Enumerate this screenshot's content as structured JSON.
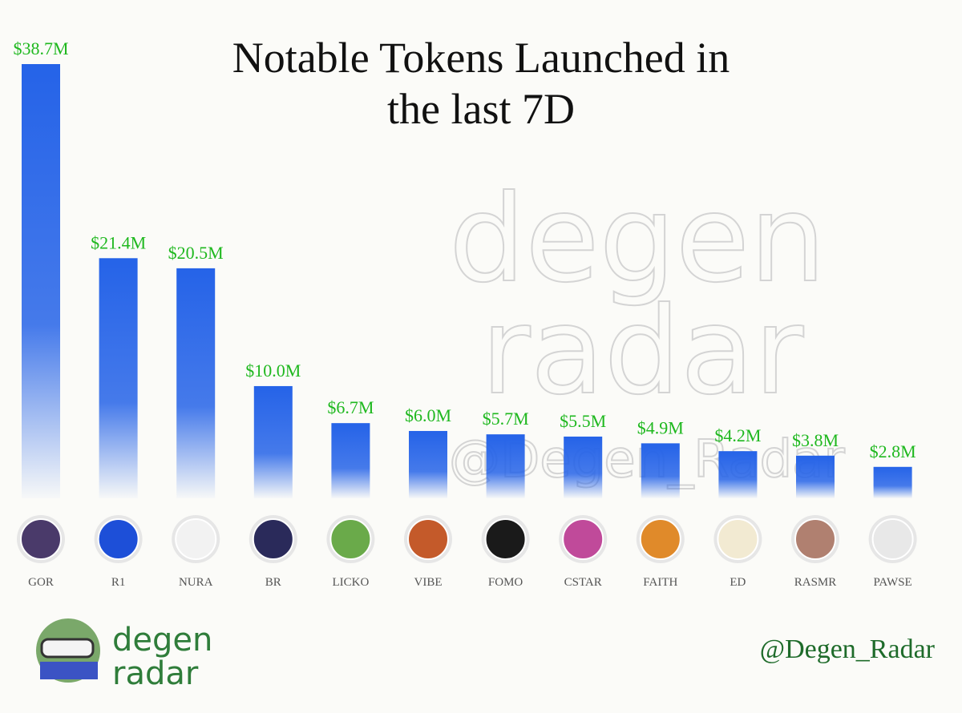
{
  "chart_data": {
    "type": "bar",
    "title": "Notable Tokens Launched in the last 7D",
    "categories": [
      "GOR",
      "R1",
      "NURA",
      "BR",
      "LICKO",
      "VIBE",
      "FOMO",
      "CSTAR",
      "FAITH",
      "ED",
      "RASMR",
      "PAWSE"
    ],
    "values": [
      38.7,
      21.4,
      20.5,
      10.0,
      6.7,
      6.0,
      5.7,
      5.5,
      4.9,
      4.2,
      3.8,
      2.8
    ],
    "value_labels": [
      "$38.7M",
      "$21.4M",
      "$20.5M",
      "$10.0M",
      "$6.7M",
      "$6.0M",
      "$5.7M",
      "$5.5M",
      "$4.9M",
      "$4.2M",
      "$3.8M",
      "$2.8M"
    ],
    "color": "#2563e8",
    "label_color": "#1fb81f"
  },
  "watermark": {
    "lines": [
      "degen",
      "radar"
    ],
    "handle": "@Degen_Radar"
  },
  "footer": {
    "logo_lines": [
      "degen",
      "radar"
    ],
    "handle": "@Degen_Radar"
  }
}
